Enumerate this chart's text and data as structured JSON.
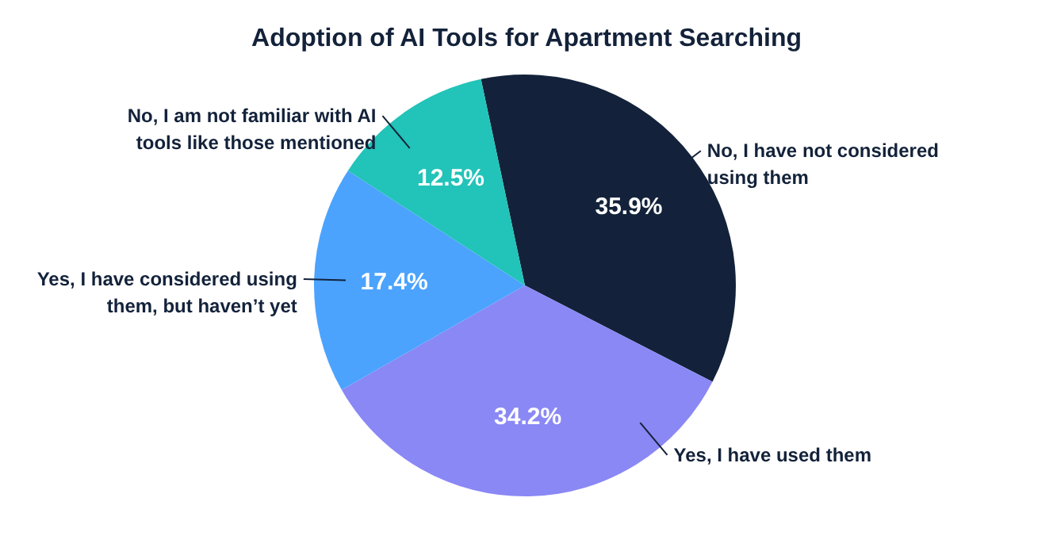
{
  "chart_data": {
    "type": "pie",
    "title": "Adoption of AI Tools for Apartment Searching",
    "categories": [
      "No, I have not considered using them",
      "Yes, I have used them",
      "Yes, I have considered using them, but haven’t yet",
      "No, I am not familiar with AI tools like those mentioned"
    ],
    "values": [
      35.9,
      34.2,
      17.4,
      12.5
    ],
    "value_labels": [
      "35.9%",
      "34.2%",
      "17.4%",
      "12.5%"
    ],
    "colors": [
      "#13223a",
      "#8a88f5",
      "#4ba3fe",
      "#22c3b8"
    ]
  }
}
